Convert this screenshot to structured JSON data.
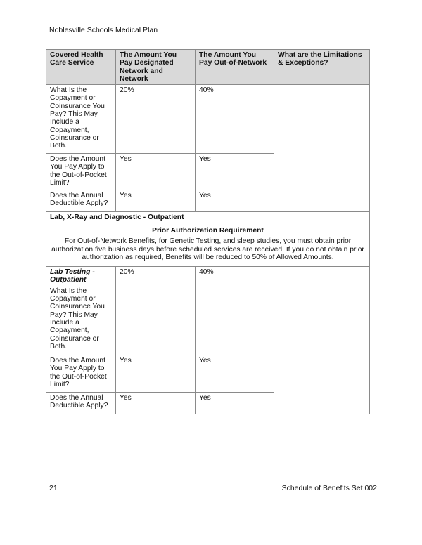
{
  "header": "Noblesville Schools Medical Plan",
  "footer": {
    "page": "21",
    "title": "Schedule of Benefits Set 002"
  },
  "table": {
    "columns": [
      "Covered Health Care Service",
      "The Amount You Pay Designated Network and Network",
      "The Amount You Pay Out-of-Network",
      "What are the Limitations & Exceptions?"
    ],
    "rows1": [
      {
        "q": "What Is the Copayment or Coinsurance You Pay? This May Include a Copayment, Coinsurance or Both.",
        "net": "20%",
        "oon": "40%"
      },
      {
        "q": "Does the Amount You Pay Apply to the Out-of-Pocket Limit?",
        "net": "Yes",
        "oon": "Yes"
      },
      {
        "q": "Does the Annual Deductible Apply?",
        "net": "Yes",
        "oon": "Yes"
      }
    ],
    "section": "Lab, X-Ray and Diagnostic - Outpatient",
    "prior_auth_title": "Prior Authorization Requirement",
    "prior_auth_text": "For Out-of-Network Benefits, for Genetic Testing, and sleep studies, you must obtain prior authorization five business days before scheduled services are received. If you do not obtain prior authorization as required, Benefits will be reduced to 50% of Allowed Amounts.",
    "service": "Lab Testing - Outpatient",
    "rows2": [
      {
        "q": "What Is the Copayment or Coinsurance You Pay? This May Include a Copayment, Coinsurance or Both.",
        "net": "20%",
        "oon": "40%"
      },
      {
        "q": "Does the Amount You Pay Apply to the Out-of-Pocket Limit?",
        "net": "Yes",
        "oon": "Yes"
      },
      {
        "q": "Does the Annual Deductible Apply?",
        "net": "Yes",
        "oon": "Yes"
      }
    ]
  }
}
